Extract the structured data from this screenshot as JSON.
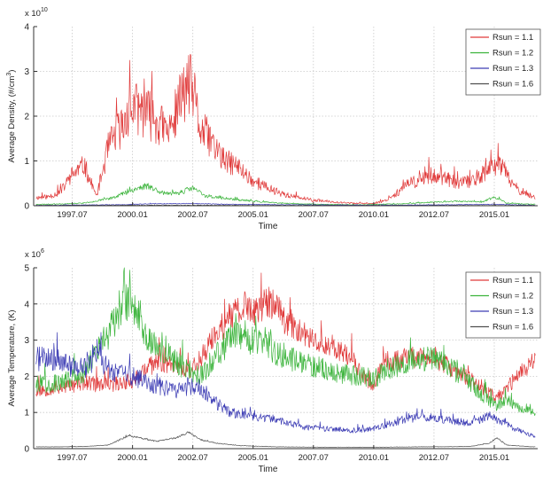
{
  "chart_data": [
    {
      "type": "line",
      "multiplier": "x 10",
      "exponent": "10",
      "xlabel": "Time",
      "ylabel": "Average Density,  (#/cm",
      "ylabel_sup": "3",
      "ylabel_close": ")",
      "ylim": [
        0,
        4
      ],
      "yticks": [
        "0",
        "1",
        "2",
        "3",
        "4"
      ],
      "xlim": [
        1995.9,
        2016.8
      ],
      "xticks": [
        {
          "label": "1997.07",
          "x": 1997.5
        },
        {
          "label": "2000.01",
          "x": 2000.0
        },
        {
          "label": "2002.07",
          "x": 2002.5
        },
        {
          "label": "2005.01",
          "x": 2005.0
        },
        {
          "label": "2007.07",
          "x": 2007.5
        },
        {
          "label": "2010.01",
          "x": 2010.0
        },
        {
          "label": "2012.07",
          "x": 2012.5
        },
        {
          "label": "2015.01",
          "x": 2015.0
        }
      ],
      "grid": "dotted",
      "legend_position": "top-right",
      "series": [
        {
          "name": "Rsun =  1.1",
          "color": "#e03a3a",
          "noise": 0.28,
          "seed": 11,
          "x": [
            1996.0,
            1996.5,
            1997.0,
            1997.5,
            1998.0,
            1998.5,
            1999.0,
            1999.3,
            1999.6,
            2000.0,
            2000.5,
            2001.0,
            2001.5,
            2002.0,
            2002.3,
            2002.5,
            2002.8,
            2003.2,
            2003.8,
            2004.3,
            2005.0,
            2005.8,
            2006.5,
            2007.5,
            2008.5,
            2009.3,
            2010.0,
            2010.5,
            2011.0,
            2011.5,
            2012.0,
            2012.5,
            2013.0,
            2013.5,
            2014.0,
            2014.5,
            2014.9,
            2015.2,
            2015.6,
            2016.0,
            2016.6
          ],
          "y": [
            0.18,
            0.2,
            0.3,
            0.7,
            0.9,
            0.2,
            1.3,
            1.6,
            1.8,
            2.2,
            2.1,
            1.9,
            1.6,
            2.4,
            2.7,
            2.6,
            1.7,
            1.5,
            1.0,
            0.9,
            0.55,
            0.35,
            0.22,
            0.12,
            0.08,
            0.05,
            0.05,
            0.12,
            0.3,
            0.5,
            0.6,
            0.7,
            0.6,
            0.5,
            0.55,
            0.7,
            0.8,
            1.0,
            0.6,
            0.35,
            0.2
          ]
        },
        {
          "name": "Rsun =  1.2",
          "color": "#3cb43c",
          "noise": 0.18,
          "seed": 23,
          "x": [
            1996.0,
            1997.0,
            1998.0,
            1999.0,
            2000.0,
            2000.6,
            2001.0,
            2001.5,
            2002.0,
            2002.5,
            2003.0,
            2004.0,
            2005.0,
            2006.0,
            2007.0,
            2008.0,
            2009.5,
            2011.0,
            2012.5,
            2013.5,
            2014.5,
            2015.0,
            2015.5,
            2016.6
          ],
          "y": [
            0.03,
            0.04,
            0.06,
            0.15,
            0.35,
            0.45,
            0.35,
            0.25,
            0.3,
            0.4,
            0.22,
            0.15,
            0.1,
            0.06,
            0.04,
            0.03,
            0.02,
            0.04,
            0.08,
            0.1,
            0.08,
            0.2,
            0.06,
            0.03
          ]
        },
        {
          "name": "Rsun =  1.3",
          "color": "#3c3cb4",
          "noise": 0.15,
          "seed": 37,
          "x": [
            1996.0,
            1999.5,
            2000.5,
            2002.5,
            2004.0,
            2007.0,
            2010.0,
            2013.0,
            2015.0,
            2016.6
          ],
          "y": [
            0.01,
            0.02,
            0.04,
            0.05,
            0.03,
            0.02,
            0.01,
            0.02,
            0.03,
            0.01
          ]
        },
        {
          "name": "Rsun =  1.6",
          "color": "#505050",
          "noise": 0.1,
          "seed": 41,
          "x": [
            1996.0,
            2001.0,
            2005.0,
            2010.0,
            2016.6
          ],
          "y": [
            0.005,
            0.01,
            0.006,
            0.004,
            0.004
          ]
        }
      ]
    },
    {
      "type": "line",
      "multiplier": "x 10",
      "exponent": "6",
      "xlabel": "Time",
      "ylabel": "Average Temperature,  (K)",
      "ylim": [
        0,
        5
      ],
      "yticks": [
        "0",
        "1",
        "2",
        "3",
        "4",
        "5"
      ],
      "xlim": [
        1995.9,
        2016.8
      ],
      "xticks": [
        {
          "label": "1997.07",
          "x": 1997.5
        },
        {
          "label": "2000.01",
          "x": 2000.0
        },
        {
          "label": "2002.07",
          "x": 2002.5
        },
        {
          "label": "2005.01",
          "x": 2005.0
        },
        {
          "label": "2007.07",
          "x": 2007.5
        },
        {
          "label": "2010.01",
          "x": 2010.0
        },
        {
          "label": "2012.07",
          "x": 2012.5
        },
        {
          "label": "2015.01",
          "x": 2015.0
        }
      ],
      "grid": "dotted",
      "legend_position": "top-right",
      "series": [
        {
          "name": "Rsun =  1.1",
          "color": "#e03a3a",
          "noise": 0.12,
          "seed": 53,
          "x": [
            1996.0,
            1997.0,
            1998.0,
            1999.0,
            2000.0,
            2001.0,
            2001.8,
            2002.5,
            2003.2,
            2004.0,
            2004.6,
            2005.2,
            2005.7,
            2006.3,
            2007.0,
            2008.0,
            2009.0,
            2009.5,
            2010.0,
            2010.5,
            2011.5,
            2012.5,
            2013.5,
            2014.5,
            2015.0,
            2015.5,
            2016.0,
            2016.6
          ],
          "y": [
            1.6,
            1.7,
            1.8,
            1.75,
            1.9,
            2.4,
            2.3,
            2.2,
            2.9,
            3.6,
            3.9,
            3.8,
            4.1,
            3.6,
            3.2,
            2.9,
            2.6,
            2.0,
            1.8,
            2.4,
            2.5,
            2.5,
            2.1,
            1.7,
            1.4,
            1.6,
            2.1,
            2.4
          ]
        },
        {
          "name": "Rsun =  1.2",
          "color": "#3cb43c",
          "noise": 0.14,
          "seed": 67,
          "x": [
            1996.0,
            1997.0,
            1998.0,
            1999.0,
            1999.6,
            2000.0,
            2000.5,
            2001.0,
            2002.0,
            2002.8,
            2003.5,
            2004.2,
            2004.8,
            2005.5,
            2006.5,
            2007.5,
            2008.5,
            2009.5,
            2010.0,
            2010.5,
            2011.5,
            2012.5,
            2013.5,
            2014.5,
            2015.0,
            2015.6,
            2016.6
          ],
          "y": [
            1.8,
            1.8,
            2.1,
            3.2,
            3.9,
            4.1,
            3.2,
            2.8,
            2.3,
            2.0,
            2.6,
            3.1,
            3.0,
            2.8,
            2.5,
            2.3,
            2.1,
            2.0,
            1.9,
            2.2,
            2.4,
            2.5,
            2.1,
            1.5,
            1.2,
            1.3,
            1.0
          ]
        },
        {
          "name": "Rsun =  1.3",
          "color": "#3c3cb4",
          "noise": 0.14,
          "seed": 71,
          "x": [
            1996.0,
            1997.0,
            1998.0,
            1998.5,
            1999.0,
            2000.0,
            2001.0,
            2002.0,
            2002.5,
            2003.0,
            2004.0,
            2005.0,
            2006.0,
            2007.0,
            2008.0,
            2009.0,
            2010.0,
            2011.0,
            2012.0,
            2013.0,
            2014.0,
            2014.8,
            2015.3,
            2015.8,
            2016.6
          ],
          "y": [
            2.5,
            2.4,
            2.2,
            2.6,
            2.2,
            2.0,
            1.7,
            1.6,
            1.7,
            1.5,
            1.0,
            0.9,
            0.8,
            0.6,
            0.55,
            0.5,
            0.55,
            0.75,
            0.9,
            0.8,
            0.7,
            0.9,
            0.75,
            0.55,
            0.35
          ]
        },
        {
          "name": "Rsun =  1.6",
          "color": "#505050",
          "noise": 0.08,
          "seed": 83,
          "x": [
            1996.0,
            1997.0,
            1998.0,
            1999.0,
            1999.8,
            2000.3,
            2001.0,
            2001.8,
            2002.3,
            2002.8,
            2003.5,
            2004.5,
            2006.0,
            2008.0,
            2010.0,
            2012.0,
            2014.0,
            2014.8,
            2015.1,
            2015.5,
            2016.6
          ],
          "y": [
            0.05,
            0.05,
            0.06,
            0.1,
            0.35,
            0.3,
            0.2,
            0.3,
            0.45,
            0.25,
            0.15,
            0.08,
            0.05,
            0.04,
            0.04,
            0.05,
            0.06,
            0.15,
            0.3,
            0.1,
            0.05
          ]
        }
      ]
    }
  ]
}
